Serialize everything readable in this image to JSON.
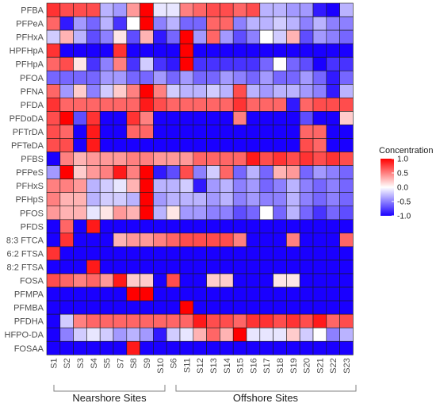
{
  "chart_data": {
    "type": "heatmap",
    "title": "",
    "rows": [
      "PFBA",
      "PFPeA",
      "PFHxA",
      "HPFHpA",
      "PFHpA",
      "PFOA",
      "PFNA",
      "PFDA",
      "PFDoDA",
      "PFTrDA",
      "PFTeDA",
      "PFBS",
      "PFPeS",
      "PFHxS",
      "PFHpS",
      "PFOS",
      "PFDS",
      "8:3 FTCA",
      "6:2 FTSA",
      "8:2 FTSA",
      "FOSA",
      "PFMPA",
      "PFMBA",
      "PFDHA",
      "HFPO-DA",
      "FOSAA"
    ],
    "columns": [
      "S1",
      "S2",
      "S3",
      "S4",
      "S5",
      "S7",
      "S8",
      "S9",
      "S10",
      "S6",
      "S11",
      "S12",
      "S13",
      "S14",
      "S15",
      "S16",
      "S17",
      "S18",
      "S19",
      "S20",
      "S21",
      "S22",
      "S23"
    ],
    "values": [
      [
        0.8,
        0.7,
        0.7,
        0.7,
        -0.3,
        -0.4,
        0.4,
        1.0,
        -0.1,
        -0.1,
        0.5,
        0.6,
        0.7,
        0.7,
        0.6,
        0.7,
        -0.3,
        -0.3,
        -0.4,
        -0.4,
        -0.9,
        -1.0,
        -0.3
      ],
      [
        0.6,
        -0.9,
        -0.4,
        -0.6,
        -0.3,
        -0.8,
        0.0,
        1.0,
        -0.5,
        -0.3,
        -0.6,
        -0.6,
        0.6,
        0.6,
        -0.5,
        -0.3,
        -0.3,
        -0.2,
        -0.3,
        -0.5,
        -0.3,
        -0.5,
        -0.5
      ],
      [
        -0.2,
        0.3,
        -0.3,
        -0.7,
        -0.5,
        0.1,
        -0.7,
        0.3,
        -0.9,
        -0.6,
        1.0,
        -0.4,
        0.6,
        -0.4,
        -0.7,
        -0.5,
        0.0,
        -0.2,
        0.3,
        -0.7,
        -0.4,
        -0.5,
        -0.6
      ],
      [
        0.8,
        -1.0,
        -1.0,
        -1.0,
        -1.0,
        0.8,
        -1.0,
        -1.0,
        -1.0,
        -1.0,
        1.0,
        -1.0,
        -1.0,
        -1.0,
        -1.0,
        -1.0,
        -1.0,
        -1.0,
        -1.0,
        -1.0,
        -1.0,
        -1.0,
        -1.0
      ],
      [
        0.6,
        0.7,
        0.1,
        -0.8,
        -0.5,
        0.5,
        -0.8,
        -0.2,
        -0.8,
        -0.9,
        1.0,
        -0.8,
        -0.8,
        -0.8,
        -0.8,
        -0.8,
        -0.6,
        0.0,
        -0.6,
        -0.7,
        -1.0,
        -0.8,
        -0.8
      ],
      [
        -0.6,
        -0.6,
        -0.6,
        -0.6,
        -0.4,
        -0.4,
        -0.6,
        -0.6,
        -0.4,
        -0.6,
        -0.4,
        -0.6,
        -0.6,
        -0.4,
        -0.5,
        -0.6,
        -0.4,
        -0.6,
        -0.6,
        -0.4,
        -0.6,
        -0.9,
        -0.6
      ],
      [
        0.6,
        -0.4,
        0.2,
        -0.5,
        -0.2,
        0.2,
        0.5,
        1.0,
        0.5,
        -0.2,
        -0.3,
        -0.3,
        -0.2,
        -0.3,
        0.7,
        -0.3,
        -0.4,
        -0.3,
        -0.3,
        -0.4,
        -0.5,
        -0.9,
        -0.3
      ],
      [
        0.8,
        0.6,
        0.6,
        0.6,
        0.6,
        0.6,
        0.6,
        0.9,
        0.7,
        0.6,
        0.6,
        0.6,
        0.6,
        0.6,
        0.8,
        0.6,
        0.6,
        0.6,
        -0.9,
        0.6,
        0.7,
        0.7,
        0.7
      ],
      [
        0.7,
        1.0,
        -0.7,
        0.8,
        -1.0,
        -1.0,
        0.8,
        0.5,
        -1.0,
        -1.0,
        -1.0,
        -1.0,
        -1.0,
        -1.0,
        0.5,
        -1.0,
        -1.0,
        -1.0,
        -1.0,
        -0.7,
        -1.0,
        -1.0,
        0.2
      ],
      [
        0.7,
        0.6,
        -1.0,
        0.9,
        -1.0,
        -1.0,
        0.6,
        0.6,
        -1.0,
        -1.0,
        -1.0,
        -1.0,
        -1.0,
        -1.0,
        -1.0,
        -1.0,
        -1.0,
        -1.0,
        -1.0,
        0.6,
        0.6,
        -1.0,
        -1.0
      ],
      [
        0.7,
        0.7,
        -1.0,
        0.9,
        -1.0,
        -1.0,
        -1.0,
        -1.0,
        -1.0,
        -1.0,
        -1.0,
        -1.0,
        -1.0,
        -1.0,
        -1.0,
        -1.0,
        -1.0,
        -1.0,
        -1.0,
        0.7,
        0.6,
        -1.0,
        -1.0
      ],
      [
        -1.0,
        0.5,
        0.3,
        0.4,
        0.4,
        0.4,
        0.5,
        0.5,
        0.4,
        0.4,
        0.4,
        0.6,
        0.6,
        0.6,
        0.6,
        0.9,
        0.7,
        0.8,
        0.7,
        0.8,
        0.7,
        0.8,
        0.7
      ],
      [
        -0.4,
        1.0,
        0.2,
        0.4,
        0.5,
        0.9,
        0.5,
        1.0,
        -0.9,
        -0.7,
        0.7,
        -0.5,
        -0.2,
        0.6,
        -0.6,
        -0.3,
        -0.6,
        0.3,
        0.4,
        -0.6,
        -0.4,
        -0.5,
        -0.6
      ],
      [
        0.5,
        0.5,
        0.4,
        -0.3,
        -0.2,
        -0.1,
        0.3,
        1.0,
        -0.3,
        -0.3,
        -0.2,
        -0.9,
        -0.4,
        -0.3,
        -0.5,
        -0.4,
        -0.6,
        -0.5,
        -0.3,
        -0.5,
        -0.6,
        -0.5,
        -0.6
      ],
      [
        0.5,
        0.3,
        0.3,
        -0.3,
        -0.2,
        -0.2,
        -0.3,
        1.0,
        -0.4,
        -0.3,
        -0.3,
        -0.3,
        -0.4,
        -0.3,
        -0.5,
        -0.4,
        -0.5,
        -0.5,
        -0.3,
        -0.5,
        -0.6,
        -0.5,
        -0.6
      ],
      [
        0.4,
        0.3,
        0.3,
        -0.1,
        0.1,
        0.4,
        0.3,
        1.0,
        -0.3,
        0.1,
        -0.4,
        -0.4,
        -0.5,
        -0.5,
        -0.7,
        -0.6,
        0.0,
        -0.6,
        -0.3,
        -0.6,
        -0.8,
        -0.6,
        -0.7
      ],
      [
        -1.0,
        0.6,
        -1.0,
        0.9,
        -1.0,
        -1.0,
        -1.0,
        -1.0,
        -1.0,
        -1.0,
        -1.0,
        -1.0,
        -1.0,
        -1.0,
        -1.0,
        -1.0,
        -1.0,
        -1.0,
        -1.0,
        -1.0,
        -1.0,
        -1.0,
        -1.0
      ],
      [
        -1.0,
        0.8,
        -1.0,
        -1.0,
        -1.0,
        0.3,
        0.4,
        0.4,
        0.5,
        0.6,
        0.7,
        0.7,
        0.7,
        0.7,
        0.5,
        -1.0,
        -1.0,
        -1.0,
        0.5,
        -1.0,
        -1.0,
        -1.0,
        0.6
      ],
      [
        0.8,
        -1.0,
        -1.0,
        -1.0,
        -1.0,
        -1.0,
        -1.0,
        -1.0,
        -1.0,
        -1.0,
        -1.0,
        -1.0,
        -1.0,
        -1.0,
        -1.0,
        -1.0,
        -1.0,
        -1.0,
        -1.0,
        -1.0,
        -1.0,
        -1.0,
        -1.0
      ],
      [
        -1.0,
        -1.0,
        -1.0,
        0.9,
        -1.0,
        -1.0,
        -1.0,
        -1.0,
        -1.0,
        -1.0,
        -1.0,
        -1.0,
        -1.0,
        -1.0,
        -1.0,
        -1.0,
        -1.0,
        -1.0,
        -1.0,
        -1.0,
        -1.0,
        -1.0,
        -1.0
      ],
      [
        0.7,
        0.6,
        0.5,
        0.6,
        0.4,
        0.9,
        0.2,
        0.2,
        -1.0,
        0.7,
        -1.0,
        -1.0,
        0.2,
        0.2,
        -1.0,
        -1.0,
        -1.0,
        0.1,
        0.1,
        -1.0,
        -1.0,
        -1.0,
        -1.0
      ],
      [
        -1.0,
        -1.0,
        -1.0,
        -1.0,
        -1.0,
        -1.0,
        1.0,
        1.0,
        -1.0,
        -1.0,
        -1.0,
        -1.0,
        -1.0,
        -1.0,
        -1.0,
        -1.0,
        -1.0,
        -1.0,
        -1.0,
        -1.0,
        -1.0,
        -1.0,
        -1.0
      ],
      [
        -1.0,
        -1.0,
        -1.0,
        -1.0,
        -1.0,
        -1.0,
        -1.0,
        -1.0,
        -1.0,
        -1.0,
        1.0,
        -1.0,
        -1.0,
        -1.0,
        -1.0,
        -1.0,
        -1.0,
        -1.0,
        -1.0,
        -1.0,
        -1.0,
        -1.0,
        -1.0
      ],
      [
        -1.0,
        -0.2,
        0.5,
        0.6,
        0.6,
        0.6,
        0.6,
        0.6,
        0.6,
        0.6,
        0.6,
        0.9,
        0.7,
        0.7,
        0.6,
        0.8,
        0.8,
        0.7,
        0.8,
        0.7,
        0.9,
        0.6,
        0.7
      ],
      [
        -1.0,
        -0.5,
        -0.2,
        -0.1,
        -0.2,
        -0.4,
        -0.3,
        -0.4,
        -0.9,
        -0.2,
        -0.1,
        0.3,
        0.6,
        0.3,
        1.0,
        -0.1,
        -0.1,
        -0.1,
        0.2,
        -0.2,
        0.0,
        -0.5,
        -0.3
      ],
      [
        -1.0,
        -1.0,
        -1.0,
        -1.0,
        -1.0,
        -1.0,
        0.9,
        -1.0,
        -1.0,
        -1.0,
        -1.0,
        -1.0,
        -1.0,
        -1.0,
        -1.0,
        -1.0,
        -1.0,
        -1.0,
        -1.0,
        -1.0,
        -1.0,
        -1.0,
        -1.0
      ]
    ],
    "groups": [
      {
        "label": "Nearshore Sites",
        "columns": [
          "S1",
          "S2",
          "S3",
          "S4",
          "S5",
          "S7",
          "S8",
          "S9",
          "S10"
        ]
      },
      {
        "label": "Offshore Sites",
        "columns": [
          "S6",
          "S11",
          "S12",
          "S13",
          "S14",
          "S15",
          "S16",
          "S17",
          "S18",
          "S19",
          "S20",
          "S21",
          "S22",
          "S23"
        ]
      }
    ],
    "legend": {
      "title": "Concentration",
      "ticks": [
        "1.0",
        "0.5",
        "0.0",
        "-0.5",
        "-1.0"
      ],
      "tick_values": [
        1.0,
        0.5,
        0.0,
        -0.5,
        -1.0
      ],
      "range": [
        -1.0,
        1.0
      ],
      "placement": "right"
    },
    "colors": {
      "low": "#1a00ff",
      "mid": "#ffffff",
      "high": "#ff0000"
    }
  }
}
